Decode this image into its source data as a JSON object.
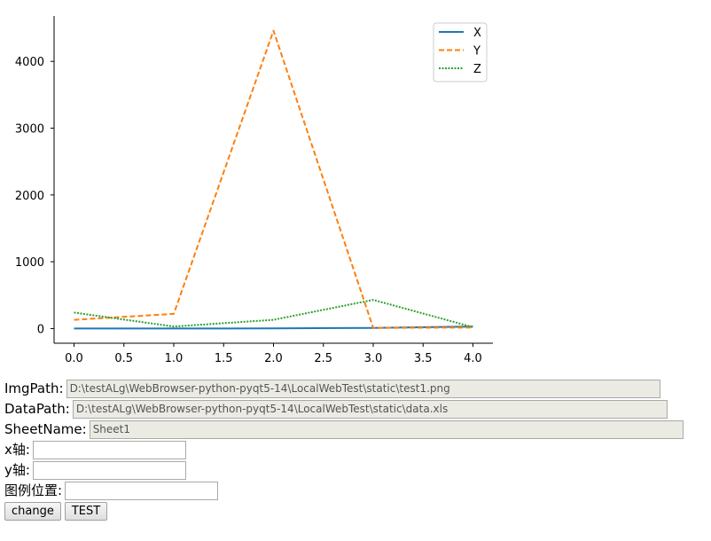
{
  "chart_data": {
    "type": "line",
    "x": [
      0,
      1,
      2,
      3,
      4
    ],
    "series": [
      {
        "name": "X",
        "values": [
          0,
          1,
          2,
          10,
          30
        ],
        "color": "#1f77b4",
        "style": "solid"
      },
      {
        "name": "Y",
        "values": [
          130,
          220,
          4460,
          10,
          15
        ],
        "color": "#ff7f0e",
        "style": "dashed"
      },
      {
        "name": "Z",
        "values": [
          240,
          30,
          130,
          430,
          20
        ],
        "color": "#2ca02c",
        "style": "dotted"
      }
    ],
    "x_ticks": [
      "0.0",
      "0.5",
      "1.0",
      "1.5",
      "2.0",
      "2.5",
      "3.0",
      "3.5",
      "4.0"
    ],
    "y_ticks": [
      "0",
      "1000",
      "2000",
      "3000",
      "4000"
    ],
    "xlim": [
      -0.2,
      4.2
    ],
    "ylim": [
      -220,
      4680
    ],
    "grid": false,
    "legend_position": "top-right",
    "title": "",
    "xlabel": "",
    "ylabel": ""
  },
  "form": {
    "img_path": {
      "label": "ImgPath:",
      "value": "D:\\testALg\\WebBrowser-python-pyqt5-14\\LocalWebTest\\static\\test1.png"
    },
    "data_path": {
      "label": "DataPath:",
      "value": "D:\\testALg\\WebBrowser-python-pyqt5-14\\LocalWebTest\\static\\data.xls"
    },
    "sheet_name": {
      "label": "SheetName:",
      "value": "Sheet1"
    },
    "x_axis": {
      "label": "x轴:",
      "value": ""
    },
    "y_axis": {
      "label": "y轴:",
      "value": ""
    },
    "legend_pos": {
      "label": "图例位置:",
      "value": ""
    },
    "change_label": "change",
    "test_label": "TEST"
  }
}
